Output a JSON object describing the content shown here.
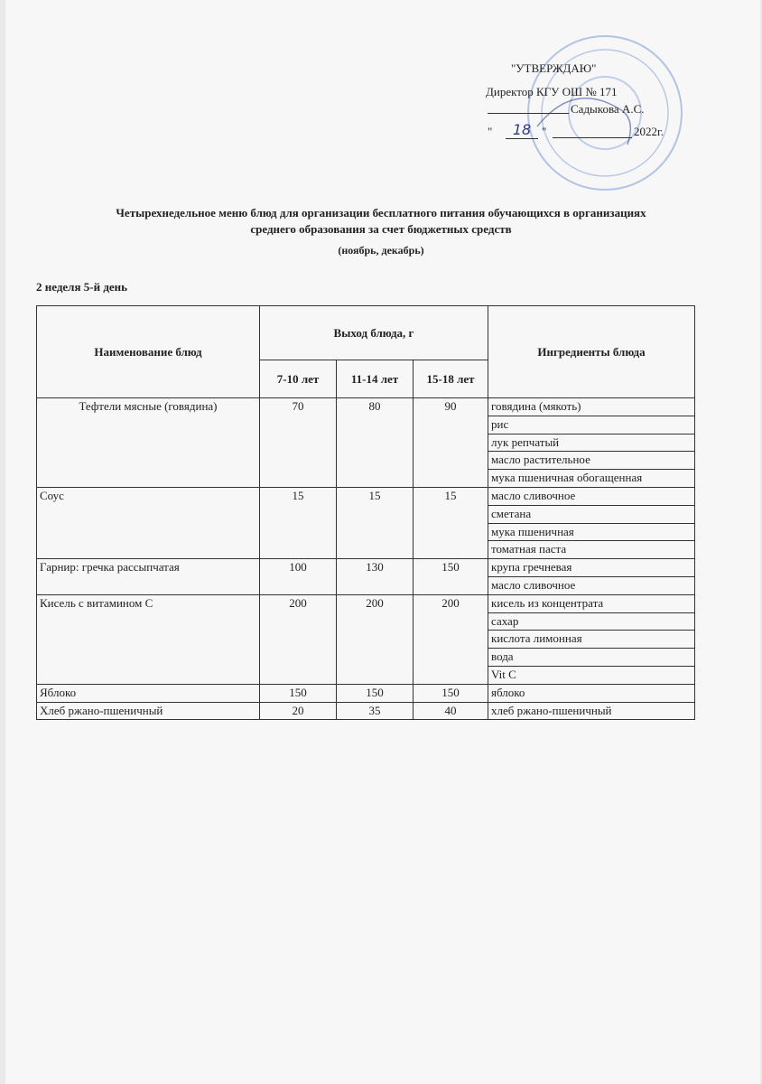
{
  "approval": {
    "title": "\"УТВЕРЖДАЮ\"",
    "position": "Директор КГУ ОШ № 171",
    "signer": "Садыкова А.С.",
    "quote": "\"",
    "day": "18",
    "year": "2022г."
  },
  "header": {
    "title_lines": [
      "Четырехнедельное меню блюд для организации бесплатного питания обучающихся в организациях",
      "среднего образования за счет бюджетных средств"
    ],
    "period": "(ноябрь, декабрь)",
    "day": "2 неделя 5-й день"
  },
  "table": {
    "header": {
      "name": "Наименование блюд",
      "yield": "Выход блюда, г",
      "ages": [
        "7-10 лет",
        "11-14 лет",
        "15-18 лет"
      ],
      "ingredients": "Ингредиенты блюда"
    },
    "rows": [
      {
        "name": "Тефтели мясные (говядина)",
        "yields": [
          70,
          80,
          90
        ],
        "ingredients": [
          "говядина (мякоть)",
          "рис",
          "лук репчатый",
          "масло растительное",
          "мука пшеничная обогащенная"
        ]
      },
      {
        "name": "Соус",
        "yields": [
          15,
          15,
          15
        ],
        "ingredients": [
          "масло сливочное",
          "сметана",
          "мука пшеничная",
          "томатная паста"
        ]
      },
      {
        "name": "Гарнир: гречка рассыпчатая",
        "yields": [
          100,
          130,
          150
        ],
        "ingredients": [
          "крупа гречневая",
          "масло сливочное"
        ]
      },
      {
        "name": "Кисель с витамином С",
        "yields": [
          200,
          200,
          200
        ],
        "ingredients": [
          "кисель из концентрата",
          "сахар",
          "кислота лимонная",
          "вода",
          "Vit C"
        ]
      },
      {
        "name": "Яблоко",
        "yields": [
          150,
          150,
          150
        ],
        "ingredients": [
          "яблоко"
        ]
      },
      {
        "name": "Хлеб ржано-пшеничный",
        "yields": [
          20,
          35,
          40
        ],
        "ingredients": [
          "хлеб ржано-пшеничный"
        ]
      }
    ]
  }
}
